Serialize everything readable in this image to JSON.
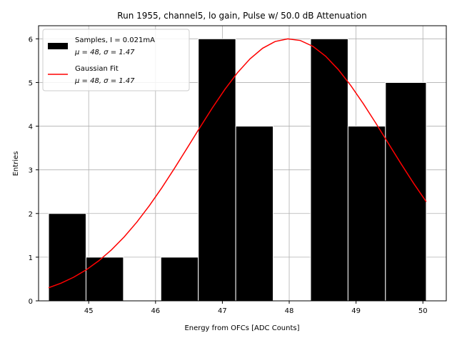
{
  "chart_data": {
    "type": "bar",
    "title": "Run 1955, channel5, lo gain, Pulse w/ 50.0 dB Attenuation",
    "xlabel": "Energy from OFCs [ADC Counts]",
    "ylabel": "Entries",
    "xlim": [
      44.25,
      50.35
    ],
    "ylim": [
      0,
      6.3
    ],
    "grid": true,
    "legend_position": "top-left",
    "xticks": [
      45,
      46,
      47,
      48,
      49,
      50
    ],
    "yticks": [
      0,
      1,
      2,
      3,
      4,
      5,
      6
    ],
    "bar_color": "#000000",
    "fit_color": "#ff0000",
    "bins": [
      {
        "x0": 44.4,
        "x1": 44.96,
        "count": 2
      },
      {
        "x0": 44.96,
        "x1": 45.52,
        "count": 1
      },
      {
        "x0": 45.52,
        "x1": 46.08,
        "count": 0
      },
      {
        "x0": 46.08,
        "x1": 46.64,
        "count": 1
      },
      {
        "x0": 46.64,
        "x1": 47.2,
        "count": 6
      },
      {
        "x0": 47.2,
        "x1": 47.76,
        "count": 4
      },
      {
        "x0": 47.76,
        "x1": 48.32,
        "count": 0
      },
      {
        "x0": 48.32,
        "x1": 48.88,
        "count": 6
      },
      {
        "x0": 48.88,
        "x1": 49.44,
        "count": 4
      },
      {
        "x0": 49.44,
        "x1": 50.05,
        "count": 5
      }
    ],
    "fit": {
      "name": "Gaussian Fit",
      "amplitude": 6.0,
      "mu": 48.0,
      "sigma": 1.47,
      "x_range": [
        44.4,
        50.05
      ]
    },
    "legend": [
      {
        "label": "Samples, I = 0.021mA",
        "sublabel": "μ = 48, σ = 1.47",
        "swatch": "bar"
      },
      {
        "label": "Gaussian Fit",
        "sublabel": "μ = 48, σ = 1.47",
        "swatch": "line"
      }
    ]
  }
}
